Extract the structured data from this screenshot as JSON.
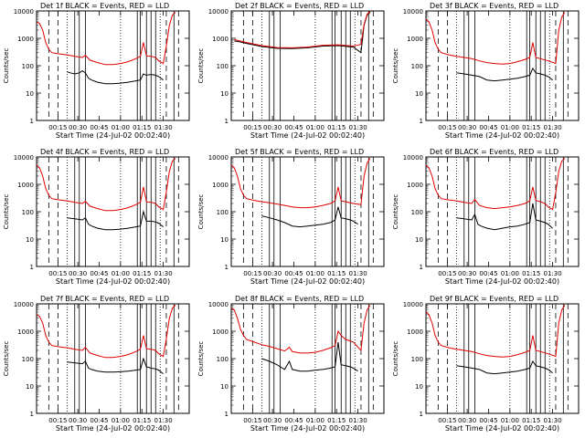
{
  "figure": {
    "ylabel": "Counts/sec",
    "xlabel": "Start Time (24-Jul-02 00:02:40)",
    "xticks": [
      "00:15",
      "00:30",
      "00:45",
      "01:00",
      "01:15",
      "01:30"
    ],
    "yticks": [
      "10000",
      "1000",
      "100",
      "10",
      "1"
    ],
    "colors": {
      "events": "#000000",
      "lld": "#e00000",
      "background": "#ffffff"
    }
  },
  "chart_data": [
    {
      "type": "line",
      "title": "Det 1f BLACK = Events, RED = LLD",
      "xlabel": "Start Time (24-Jul-02 00:02:40)",
      "ylabel": "Counts/sec",
      "xlim": [
        0,
        100
      ],
      "ylim": [
        1,
        10000
      ],
      "yscale": "log",
      "series": [
        {
          "name": "Events",
          "color": "black",
          "x": [
            20,
            22,
            25,
            28,
            30,
            32,
            34,
            36,
            40,
            45,
            50,
            55,
            60,
            65,
            68,
            70,
            72,
            75,
            78,
            80,
            83
          ],
          "y": [
            60,
            55,
            50,
            55,
            65,
            55,
            35,
            30,
            25,
            22,
            22,
            23,
            25,
            28,
            30,
            50,
            45,
            48,
            45,
            40,
            30
          ]
        },
        {
          "name": "LLD",
          "color": "red",
          "x": [
            0,
            2,
            4,
            6,
            8,
            10,
            15,
            20,
            25,
            30,
            32,
            35,
            40,
            45,
            50,
            55,
            60,
            65,
            68,
            70,
            72,
            75,
            78,
            80,
            83,
            85,
            87,
            89,
            91
          ],
          "y": [
            4000,
            3500,
            2000,
            700,
            400,
            300,
            270,
            250,
            220,
            200,
            240,
            160,
            130,
            110,
            110,
            120,
            140,
            180,
            220,
            700,
            230,
            220,
            200,
            150,
            120,
            500,
            3000,
            7000,
            9000
          ]
        }
      ]
    },
    {
      "type": "line",
      "title": "Det 2f BLACK = Events, RED = LLD",
      "xlabel": "Start Time (24-Jul-02 00:02:40)",
      "ylabel": "Counts/sec",
      "xlim": [
        0,
        100
      ],
      "ylim": [
        1,
        10000
      ],
      "yscale": "log",
      "series": [
        {
          "name": "Events",
          "color": "black",
          "x": [
            2,
            5,
            10,
            20,
            30,
            40,
            50,
            60,
            70,
            80,
            85,
            87,
            89,
            91
          ],
          "y": [
            800,
            750,
            650,
            500,
            430,
            420,
            450,
            520,
            540,
            480,
            300,
            3000,
            7000,
            9000
          ]
        },
        {
          "name": "LLD",
          "color": "red",
          "x": [
            2,
            5,
            10,
            20,
            30,
            40,
            50,
            60,
            70,
            80,
            85,
            87,
            89,
            91
          ],
          "y": [
            900,
            820,
            700,
            540,
            460,
            450,
            480,
            560,
            580,
            520,
            600,
            3200,
            7500,
            9500
          ]
        }
      ]
    },
    {
      "type": "line",
      "title": "Det 3f BLACK = Events, RED = LLD",
      "xlabel": "Start Time (24-Jul-02 00:02:40)",
      "ylabel": "Counts/sec",
      "xlim": [
        0,
        100
      ],
      "ylim": [
        1,
        10000
      ],
      "yscale": "log",
      "series": [
        {
          "name": "Events",
          "color": "black",
          "x": [
            20,
            25,
            30,
            35,
            40,
            45,
            50,
            55,
            60,
            65,
            68,
            70,
            72,
            75,
            78,
            80,
            83
          ],
          "y": [
            55,
            50,
            45,
            40,
            30,
            28,
            30,
            32,
            35,
            40,
            45,
            80,
            55,
            50,
            45,
            40,
            30
          ]
        },
        {
          "name": "LLD",
          "color": "red",
          "x": [
            0,
            2,
            4,
            6,
            8,
            10,
            15,
            20,
            25,
            30,
            35,
            40,
            45,
            50,
            55,
            60,
            65,
            68,
            70,
            72,
            75,
            80,
            85,
            87,
            89,
            91
          ],
          "y": [
            5000,
            4000,
            2000,
            700,
            400,
            300,
            250,
            220,
            200,
            180,
            150,
            130,
            120,
            115,
            120,
            140,
            170,
            200,
            700,
            200,
            180,
            150,
            120,
            2000,
            6000,
            9000
          ]
        }
      ]
    },
    {
      "type": "line",
      "title": "Det 4f BLACK = Events, RED = LLD",
      "xlabel": "Start Time (24-Jul-02 00:02:40)",
      "ylabel": "Counts/sec",
      "xlim": [
        0,
        100
      ],
      "ylim": [
        1,
        10000
      ],
      "yscale": "log",
      "series": [
        {
          "name": "Events",
          "color": "black",
          "x": [
            20,
            25,
            30,
            32,
            34,
            36,
            40,
            45,
            50,
            55,
            60,
            65,
            68,
            70,
            72,
            75,
            78,
            80,
            83
          ],
          "y": [
            60,
            55,
            50,
            60,
            35,
            30,
            25,
            22,
            22,
            23,
            25,
            28,
            30,
            100,
            45,
            45,
            42,
            38,
            28
          ]
        },
        {
          "name": "LLD",
          "color": "red",
          "x": [
            0,
            2,
            4,
            6,
            8,
            10,
            15,
            20,
            25,
            30,
            32,
            35,
            40,
            45,
            50,
            55,
            60,
            65,
            68,
            70,
            72,
            75,
            78,
            80,
            83,
            85,
            87,
            89,
            91
          ],
          "y": [
            5000,
            4000,
            2000,
            700,
            400,
            300,
            270,
            250,
            220,
            200,
            240,
            160,
            130,
            110,
            110,
            120,
            140,
            180,
            220,
            800,
            230,
            220,
            200,
            150,
            120,
            500,
            3000,
            7000,
            9000
          ]
        }
      ]
    },
    {
      "type": "line",
      "title": "Det 5f BLACK = Events, RED = LLD",
      "xlabel": "Start Time (24-Jul-02 00:02:40)",
      "ylabel": "Counts/sec",
      "xlim": [
        0,
        100
      ],
      "ylim": [
        1,
        10000
      ],
      "yscale": "log",
      "series": [
        {
          "name": "Events",
          "color": "black",
          "x": [
            20,
            25,
            30,
            35,
            40,
            45,
            50,
            55,
            60,
            65,
            68,
            70,
            72,
            75,
            78,
            80,
            83
          ],
          "y": [
            70,
            60,
            50,
            40,
            30,
            28,
            30,
            32,
            35,
            40,
            50,
            150,
            60,
            55,
            50,
            45,
            35
          ]
        },
        {
          "name": "LLD",
          "color": "red",
          "x": [
            0,
            2,
            4,
            6,
            8,
            10,
            15,
            20,
            25,
            30,
            35,
            40,
            45,
            50,
            55,
            60,
            65,
            68,
            70,
            72,
            75,
            80,
            85,
            87,
            89,
            91
          ],
          "y": [
            5000,
            4000,
            2000,
            700,
            400,
            300,
            260,
            230,
            210,
            190,
            170,
            150,
            140,
            140,
            150,
            170,
            200,
            250,
            800,
            250,
            230,
            200,
            180,
            2000,
            6000,
            9000
          ]
        }
      ]
    },
    {
      "type": "line",
      "title": "Det 6f BLACK = Events, RED = LLD",
      "xlabel": "Start Time (24-Jul-02 00:02:40)",
      "ylabel": "Counts/sec",
      "xlim": [
        0,
        100
      ],
      "ylim": [
        1,
        10000
      ],
      "yscale": "log",
      "series": [
        {
          "name": "Events",
          "color": "black",
          "x": [
            20,
            25,
            30,
            32,
            34,
            36,
            40,
            45,
            50,
            55,
            60,
            65,
            68,
            70,
            72,
            75,
            78,
            80,
            83
          ],
          "y": [
            60,
            55,
            50,
            80,
            35,
            30,
            25,
            22,
            25,
            28,
            30,
            35,
            40,
            200,
            50,
            45,
            40,
            35,
            25
          ]
        },
        {
          "name": "LLD",
          "color": "red",
          "x": [
            0,
            2,
            4,
            6,
            8,
            10,
            15,
            20,
            25,
            30,
            32,
            35,
            40,
            45,
            50,
            55,
            60,
            65,
            68,
            70,
            72,
            75,
            78,
            80,
            83,
            85,
            87,
            89,
            91
          ],
          "y": [
            5000,
            4000,
            2000,
            700,
            400,
            300,
            270,
            250,
            220,
            200,
            280,
            170,
            140,
            130,
            140,
            150,
            170,
            200,
            250,
            800,
            260,
            230,
            200,
            150,
            120,
            500,
            3000,
            7000,
            9000
          ]
        }
      ]
    },
    {
      "type": "line",
      "title": "Det 7f BLACK = Events, RED = LLD",
      "xlabel": "Start Time (24-Jul-02 00:02:40)",
      "ylabel": "Counts/sec",
      "xlim": [
        0,
        100
      ],
      "ylim": [
        1,
        10000
      ],
      "yscale": "log",
      "series": [
        {
          "name": "Events",
          "color": "black",
          "x": [
            20,
            25,
            30,
            32,
            34,
            36,
            40,
            45,
            50,
            55,
            60,
            65,
            68,
            70,
            72,
            75,
            78,
            80,
            83
          ],
          "y": [
            75,
            70,
            65,
            80,
            45,
            40,
            35,
            32,
            32,
            33,
            35,
            38,
            40,
            100,
            50,
            45,
            42,
            38,
            28
          ]
        },
        {
          "name": "LLD",
          "color": "red",
          "x": [
            0,
            2,
            4,
            6,
            8,
            10,
            15,
            20,
            25,
            30,
            32,
            35,
            40,
            45,
            50,
            55,
            60,
            65,
            68,
            70,
            72,
            75,
            78,
            80,
            83,
            85,
            87,
            89,
            91
          ],
          "y": [
            4000,
            3500,
            2000,
            700,
            400,
            300,
            270,
            250,
            220,
            200,
            260,
            160,
            130,
            110,
            110,
            120,
            140,
            180,
            220,
            700,
            230,
            220,
            200,
            150,
            120,
            500,
            3000,
            7000,
            9000
          ]
        }
      ]
    },
    {
      "type": "line",
      "title": "Det 8f BLACK = Events, RED = LLD",
      "xlabel": "Start Time (24-Jul-02 00:02:40)",
      "ylabel": "Counts/sec",
      "xlim": [
        0,
        100
      ],
      "ylim": [
        1,
        10000
      ],
      "yscale": "log",
      "series": [
        {
          "name": "Events",
          "color": "black",
          "x": [
            20,
            25,
            30,
            35,
            38,
            40,
            45,
            50,
            55,
            60,
            65,
            68,
            70,
            72,
            75,
            78,
            80,
            83
          ],
          "y": [
            100,
            80,
            60,
            40,
            80,
            40,
            35,
            35,
            38,
            40,
            45,
            50,
            400,
            60,
            55,
            50,
            45,
            35
          ]
        },
        {
          "name": "LLD",
          "color": "red",
          "x": [
            0,
            2,
            4,
            6,
            8,
            10,
            15,
            20,
            25,
            30,
            35,
            38,
            40,
            45,
            50,
            55,
            60,
            65,
            68,
            70,
            72,
            75,
            80,
            85,
            87,
            89,
            91
          ],
          "y": [
            7000,
            6000,
            3000,
            1200,
            700,
            500,
            400,
            320,
            280,
            230,
            190,
            260,
            180,
            160,
            160,
            170,
            200,
            250,
            300,
            1000,
            700,
            500,
            400,
            200,
            2000,
            6000,
            9000
          ]
        }
      ]
    },
    {
      "type": "line",
      "title": "Det 9f BLACK = Events, RED = LLD",
      "xlabel": "Start Time (24-Jul-02 00:02:40)",
      "ylabel": "Counts/sec",
      "xlim": [
        0,
        100
      ],
      "ylim": [
        1,
        10000
      ],
      "yscale": "log",
      "series": [
        {
          "name": "Events",
          "color": "black",
          "x": [
            20,
            25,
            30,
            35,
            40,
            45,
            50,
            55,
            60,
            65,
            68,
            70,
            72,
            75,
            78,
            80,
            83
          ],
          "y": [
            55,
            50,
            45,
            40,
            30,
            28,
            30,
            32,
            35,
            40,
            45,
            80,
            55,
            50,
            45,
            40,
            30
          ]
        },
        {
          "name": "LLD",
          "color": "red",
          "x": [
            0,
            2,
            4,
            6,
            8,
            10,
            15,
            20,
            25,
            30,
            35,
            40,
            45,
            50,
            55,
            60,
            65,
            68,
            70,
            72,
            75,
            80,
            85,
            87,
            89,
            91
          ],
          "y": [
            5000,
            4000,
            2000,
            700,
            400,
            300,
            250,
            220,
            200,
            180,
            150,
            130,
            120,
            115,
            120,
            140,
            170,
            200,
            700,
            200,
            180,
            150,
            120,
            2000,
            6000,
            9000
          ]
        }
      ]
    }
  ]
}
